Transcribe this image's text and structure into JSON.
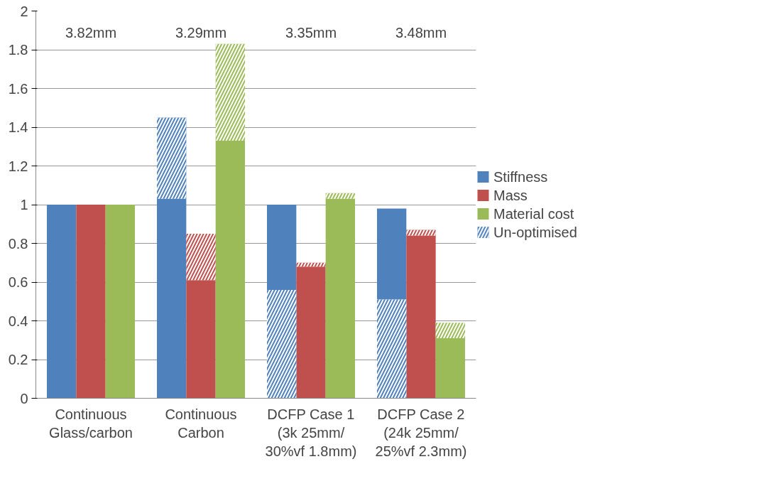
{
  "chart_data": {
    "type": "bar",
    "categories": [
      "Continuous\nGlass/carbon",
      "Continuous\nCarbon",
      "DCFP Case 1\n(3k 25mm/\n30%vf 1.8mm)",
      "DCFP Case 2\n(24k 25mm/\n25%vf 2.3mm)"
    ],
    "series": [
      {
        "name": "Stiffness",
        "color": "#4f81bd",
        "base": [
          0,
          0,
          0.56,
          0.51
        ],
        "values": [
          1,
          1.03,
          0.44,
          0.47
        ]
      },
      {
        "name": "Mass",
        "color": "#c0504d",
        "base": [
          0,
          0,
          0,
          0
        ],
        "values": [
          1,
          0.61,
          0.68,
          0.84
        ]
      },
      {
        "name": "Material cost",
        "color": "#9bbb59",
        "base": [
          0,
          0,
          0,
          0
        ],
        "values": [
          1,
          1.33,
          1.03,
          0.31
        ]
      },
      {
        "name": "Un-optimised",
        "color": "#4f81bd",
        "base": [
          null,
          1.03,
          0,
          0
        ],
        "values": [
          null,
          0.42,
          0.56,
          0.51
        ]
      },
      {
        "color": "#c0504d",
        "base": [
          null,
          0.61,
          0.68,
          0.84
        ],
        "values": [
          null,
          0.24,
          0.02,
          0.03
        ]
      },
      {
        "color": "#9bbb59",
        "base": [
          null,
          1.33,
          1.03,
          0.31
        ],
        "values": [
          null,
          0.5,
          0.03,
          0.08
        ]
      }
    ],
    "ylim": [
      0,
      2
    ],
    "yticks": [
      0,
      0.2,
      0.4,
      0.6,
      0.8,
      1,
      1.2,
      1.4,
      1.6,
      1.8,
      2
    ],
    "grid": "y",
    "legend": "right",
    "annotations": [
      "3.82mm",
      "3.29mm",
      "3.35mm",
      "3.48mm"
    ]
  }
}
